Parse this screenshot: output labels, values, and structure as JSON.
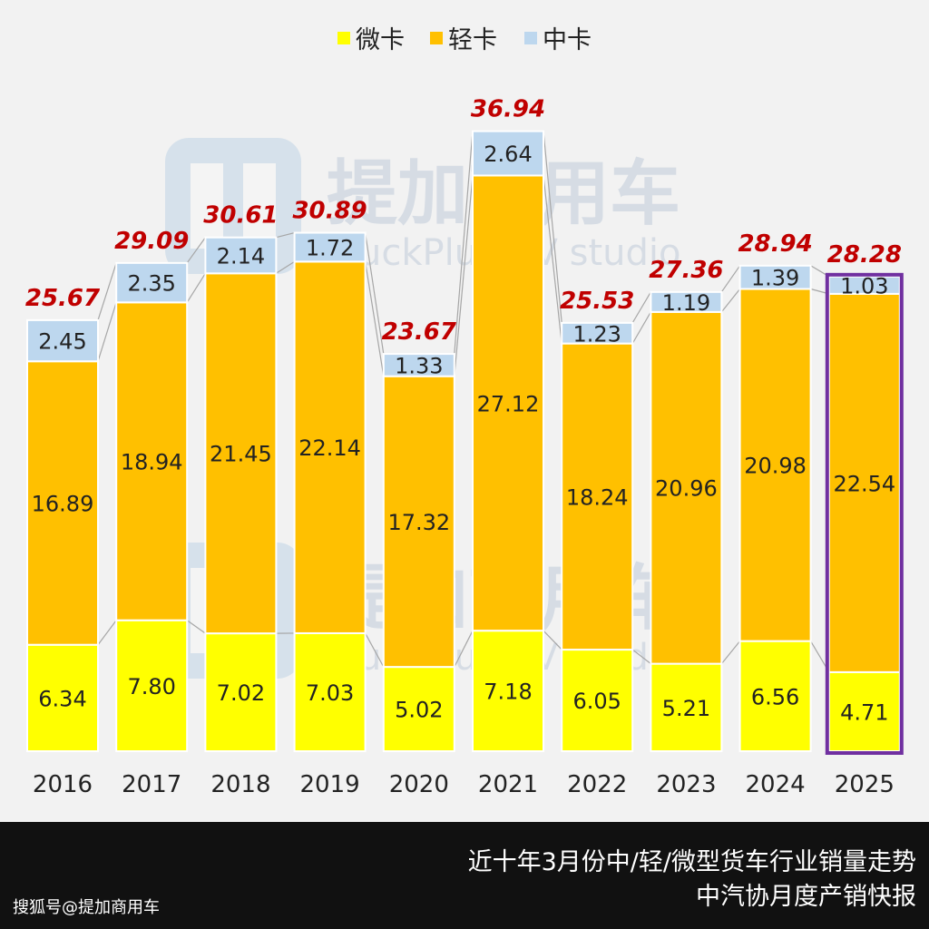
{
  "footer": {
    "title_line1": "近十年3月份中/轻/微型货车行业销量走势",
    "title_line2": "中汽协月度产销快报",
    "source": "搜狐号@提加商用车"
  },
  "watermark": {
    "cn": "提加商用车",
    "en": "TruckPlus CV studio"
  },
  "chart_data": {
    "type": "bar",
    "stacked": true,
    "categories": [
      "2016",
      "2017",
      "2018",
      "2019",
      "2020",
      "2021",
      "2022",
      "2023",
      "2024",
      "2025"
    ],
    "series": [
      {
        "name": "微卡",
        "color": "#ffff00",
        "values": [
          6.34,
          7.8,
          7.02,
          7.03,
          5.02,
          7.18,
          6.05,
          5.21,
          6.56,
          4.71
        ],
        "labels": [
          "6.34",
          "7.80",
          "7.02",
          "7.03",
          "5.02",
          "7.18",
          "6.05",
          "5.21",
          "6.56",
          "4.71"
        ]
      },
      {
        "name": "轻卡",
        "color": "#ffc000",
        "values": [
          16.89,
          18.94,
          21.45,
          22.14,
          17.32,
          27.12,
          18.24,
          20.96,
          20.98,
          22.54
        ],
        "labels": [
          "16.89",
          "18.94",
          "21.45",
          "22.14",
          "17.32",
          "27.12",
          "18.24",
          "20.96",
          "20.98",
          "22.54"
        ]
      },
      {
        "name": "中卡",
        "color": "#bdd7ee",
        "values": [
          2.45,
          2.35,
          2.14,
          1.72,
          1.33,
          2.64,
          1.23,
          1.19,
          1.39,
          1.03
        ],
        "labels": [
          "2.45",
          "2.35",
          "2.14",
          "1.72",
          "1.33",
          "2.64",
          "1.23",
          "1.19",
          "1.39",
          "1.03"
        ]
      }
    ],
    "totals": [
      "25.67",
      "29.09",
      "30.61",
      "30.89",
      "23.67",
      "36.94",
      "25.53",
      "27.36",
      "28.94",
      "28.28"
    ],
    "total_color": "#c00000",
    "highlight_category": "2025",
    "highlight_color": "#7030a0",
    "legend": "top",
    "grid": false
  }
}
